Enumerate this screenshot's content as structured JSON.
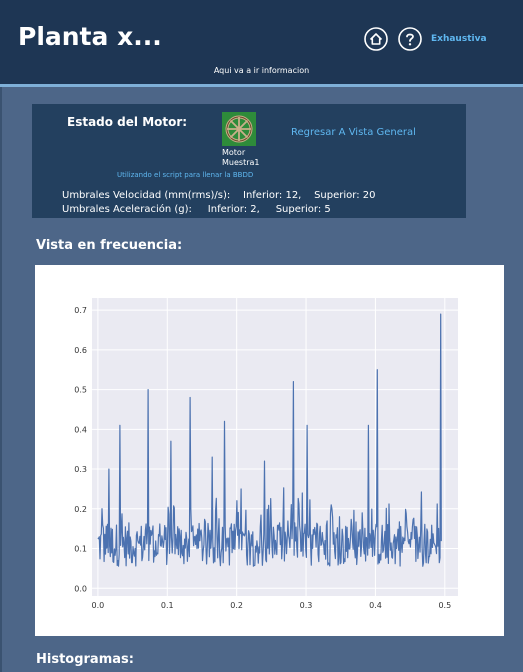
{
  "header": {
    "title": "Planta x...",
    "subtitle": "Aqui va a ir informacion",
    "home_icon": "home-icon",
    "help_icon": "help-icon",
    "mode_link": "Exhaustiva"
  },
  "motor": {
    "estado_label": "Estado del Motor:",
    "icon": "wheel-icon",
    "name_line1": "Motor",
    "name_line2": "Muestra1",
    "back_link": "Regresar A Vista General",
    "script_note": "Utilizando el script para llenar la BBDD",
    "velocidad": {
      "label": "Umbrales Velocidad (mm(rms)/s):",
      "inferior": "Inferior: 12,",
      "superior": "Superior: 20"
    },
    "aceleracion": {
      "label": "Umbrales Aceleración (g):",
      "inferior": "Inferior: 2,",
      "superior": "Superior: 5"
    }
  },
  "sections": {
    "frecuencia": "Vista en frecuencia:",
    "histogramas": "Histogramas:"
  },
  "colors": {
    "header_bg": "#1e3654",
    "page_bg": "#4d6688",
    "panel_bg": "#23405f",
    "link": "#5fb7f0",
    "line": "#4c72b0",
    "plot_bg": "#eaeaf2"
  },
  "chart_data": {
    "type": "line",
    "title": "",
    "xlabel": "",
    "ylabel": "",
    "xlim": [
      0.0,
      0.5
    ],
    "ylim": [
      0.0,
      0.7
    ],
    "grid": true,
    "x_ticks": [
      "0.0",
      "0.1",
      "0.2",
      "0.3",
      "0.4",
      "0.5"
    ],
    "y_ticks": [
      "0.0",
      "0.1",
      "0.2",
      "0.3",
      "0.4",
      "0.5",
      "0.6",
      "0.7"
    ],
    "x_start": 0.0,
    "x_end": 0.495,
    "peaks": [
      {
        "x": 0.016,
        "y": 0.3
      },
      {
        "x": 0.032,
        "y": 0.41
      },
      {
        "x": 0.072,
        "y": 0.5
      },
      {
        "x": 0.105,
        "y": 0.37
      },
      {
        "x": 0.133,
        "y": 0.48
      },
      {
        "x": 0.165,
        "y": 0.33
      },
      {
        "x": 0.183,
        "y": 0.42
      },
      {
        "x": 0.24,
        "y": 0.32
      },
      {
        "x": 0.282,
        "y": 0.52
      },
      {
        "x": 0.302,
        "y": 0.41
      },
      {
        "x": 0.39,
        "y": 0.41
      },
      {
        "x": 0.403,
        "y": 0.55
      },
      {
        "x": 0.494,
        "y": 0.69
      }
    ]
  }
}
